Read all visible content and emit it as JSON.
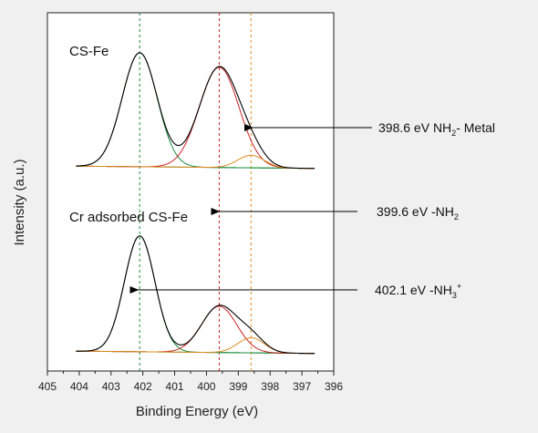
{
  "chart_data": {
    "type": "line",
    "xlabel": "Binding Energy (eV)",
    "ylabel": "Intensity (a.u.)",
    "xlim": [
      405,
      396
    ],
    "x_reversed": true,
    "x_ticks": [
      405,
      404,
      403,
      402,
      401,
      400,
      399,
      398,
      397,
      396
    ],
    "grid": false,
    "reference_lines": [
      {
        "x": 402.1,
        "color": "#1a8a3a"
      },
      {
        "x": 399.6,
        "color": "#cc2222"
      },
      {
        "x": 398.6,
        "color": "#e08a1e"
      }
    ],
    "panels": [
      {
        "label": "CS-Fe",
        "baseline": [
          0.03,
          0.01
        ],
        "peaks": [
          {
            "center": 402.1,
            "height": 1.0,
            "sigma": 0.55,
            "color": "#1a8a3a"
          },
          {
            "center": 399.6,
            "height": 0.88,
            "sigma": 0.62,
            "color": "#cc2222"
          },
          {
            "center": 398.6,
            "height": 0.11,
            "sigma": 0.42,
            "color": "#e08a1e"
          }
        ]
      },
      {
        "label": "Cr adsorbed CS-Fe",
        "baseline": [
          0.03,
          0.01
        ],
        "peaks": [
          {
            "center": 402.1,
            "height": 1.0,
            "sigma": 0.48,
            "color": "#1a8a3a"
          },
          {
            "center": 399.6,
            "height": 0.4,
            "sigma": 0.55,
            "color": "#cc2222"
          },
          {
            "center": 398.6,
            "height": 0.13,
            "sigma": 0.42,
            "color": "#e08a1e"
          }
        ]
      }
    ],
    "annotations": [
      {
        "main": "398.6 eV NH",
        "sub": "2",
        "sup": "",
        "rest": "- Metal",
        "arrow_to_x": 398.55,
        "panel": 0,
        "arrow_to_y": 0.6
      },
      {
        "main": "399.6 eV -NH",
        "sub": "2",
        "sup": "",
        "rest": "",
        "arrow_to_x": 399.6,
        "panel": 1,
        "arrow_to_y": 1.35
      },
      {
        "main": "402.1 eV -NH",
        "sub": "3",
        "sup": "+",
        "rest": "",
        "arrow_to_x": 402.15,
        "panel": 1,
        "arrow_to_y": 0.62
      }
    ]
  }
}
